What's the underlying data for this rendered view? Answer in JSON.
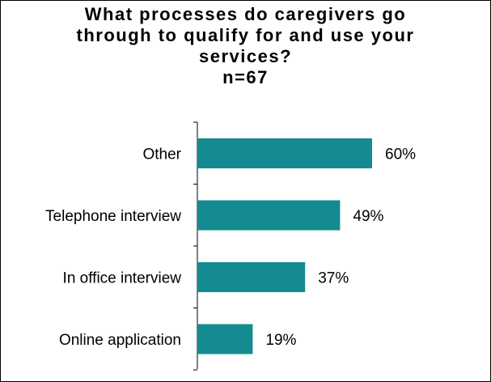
{
  "chart_data": {
    "type": "bar",
    "orientation": "horizontal",
    "title_lines": [
      "What processes do caregivers go",
      "through to qualify for and use your",
      "services?",
      "n=67"
    ],
    "categories": [
      "Other",
      "Telephone interview",
      "In office interview",
      "Online application"
    ],
    "values": [
      60,
      49,
      37,
      19
    ],
    "value_labels": [
      "60%",
      "49%",
      "37%",
      "19%"
    ],
    "xlim": [
      0,
      100
    ],
    "bar_color": "#138B91",
    "grid": false,
    "legend": "none"
  }
}
